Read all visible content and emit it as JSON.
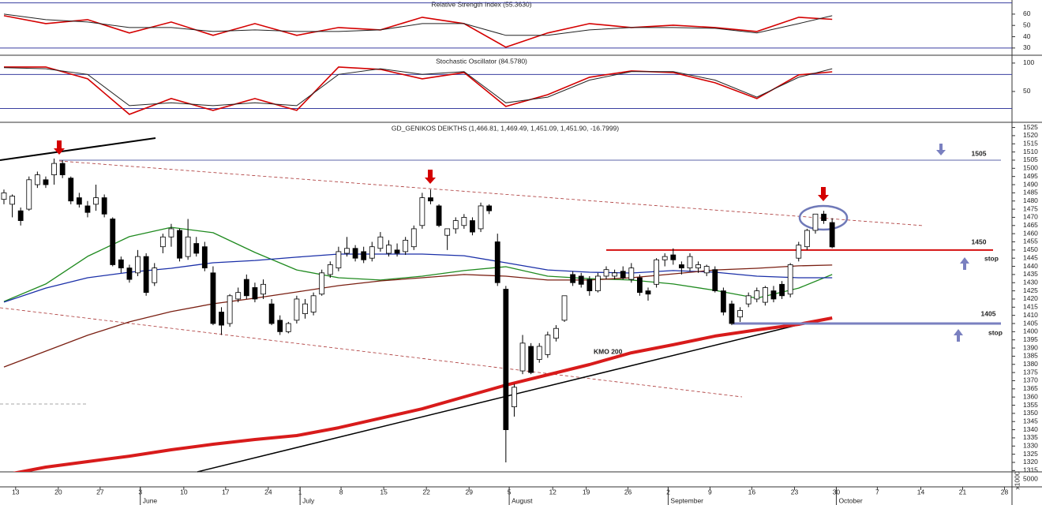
{
  "chart_data": [
    {
      "type": "line",
      "title": "Relative Strength Index (55.3630)",
      "ylim": [
        25,
        72.5
      ],
      "yticks": [
        60,
        50,
        40,
        30
      ],
      "ref_lines": [
        70,
        30
      ],
      "xlim": [
        -0.47,
        120.5
      ],
      "line_x": [
        0,
        5,
        10,
        15,
        20,
        25,
        30,
        35,
        40,
        45,
        50,
        55,
        60,
        65,
        70,
        75,
        80,
        85,
        90,
        95,
        99
      ],
      "series": [
        {
          "color": "#d40000",
          "width": 1.6,
          "values": [
            58.6,
            51.6,
            55.1,
            43.3,
            53,
            41.2,
            51.6,
            41.2,
            48.1,
            46,
            57.2,
            51.6,
            30.7,
            43.3,
            51.6,
            48.1,
            50.2,
            48.1,
            44.6,
            57.2,
            55.363
          ]
        },
        {
          "color": "#222222",
          "width": 1,
          "values": [
            60,
            55.1,
            53,
            48.1,
            48.1,
            44.6,
            46,
            44.6,
            44.6,
            46,
            51.6,
            51.6,
            41.2,
            41.2,
            46,
            48.1,
            48.1,
            47.4,
            43.3,
            51.6,
            58.6
          ]
        }
      ]
    },
    {
      "type": "line",
      "title": "Stochastic Oscillator (84.5780)",
      "ylim": [
        -1.5,
        111
      ],
      "yticks": [
        100,
        50
      ],
      "ref_lines": [
        80,
        20
      ],
      "xlim": [
        -0.47,
        120.5
      ],
      "line_x": [
        0,
        5,
        10,
        15,
        20,
        25,
        30,
        35,
        40,
        45,
        50,
        55,
        60,
        65,
        70,
        75,
        80,
        85,
        90,
        95,
        99
      ],
      "series": [
        {
          "color": "#d40000",
          "width": 1.6,
          "values": [
            93.1,
            93.1,
            72.2,
            9.7,
            37.5,
            16.7,
            37.5,
            16.7,
            93.1,
            88.9,
            72.2,
            83.3,
            23.6,
            44.4,
            75,
            86.1,
            83.3,
            65.3,
            37.5,
            79.2,
            84.578
          ]
        },
        {
          "color": "#222222",
          "width": 1,
          "values": [
            92,
            90,
            80,
            25,
            30,
            25,
            30,
            25,
            80,
            90,
            80,
            85,
            30,
            40,
            70,
            85,
            85,
            70,
            40,
            75,
            90
          ]
        }
      ]
    },
    {
      "type": "candlestick",
      "title": "GD_GENIKOS DEIKTHS (1,466.81, 1,469.49, 1,451.09, 1,451.90, -16.7999)",
      "ylim": [
        1314.2,
        1527.2
      ],
      "xlim": [
        -0.47,
        120.5
      ],
      "yticks": [
        1315,
        1320,
        1325,
        1330,
        1335,
        1340,
        1345,
        1350,
        1355,
        1360,
        1365,
        1370,
        1375,
        1380,
        1385,
        1390,
        1395,
        1400,
        1405,
        1410,
        1415,
        1420,
        1425,
        1430,
        1435,
        1440,
        1445,
        1450,
        1455,
        1460,
        1465,
        1470,
        1475,
        1480,
        1485,
        1490,
        1495,
        1500,
        1505,
        1510,
        1515,
        1520,
        1525
      ],
      "xticks": [
        {
          "value": 1.4,
          "label": "13"
        },
        {
          "value": 6.5,
          "label": "20"
        },
        {
          "value": 11.5,
          "label": "27"
        },
        {
          "value": 16.3,
          "label": "3"
        },
        {
          "value": 21.5,
          "label": "10"
        },
        {
          "value": 26.5,
          "label": "17"
        },
        {
          "value": 31.6,
          "label": "24"
        },
        {
          "value": 35.4,
          "label": "1"
        },
        {
          "value": 40.3,
          "label": "8"
        },
        {
          "value": 45.4,
          "label": "15"
        },
        {
          "value": 50.5,
          "label": "22"
        },
        {
          "value": 55.6,
          "label": "29"
        },
        {
          "value": 60.4,
          "label": "5"
        },
        {
          "value": 65.6,
          "label": "12"
        },
        {
          "value": 69.6,
          "label": "19"
        },
        {
          "value": 74.6,
          "label": "26"
        },
        {
          "value": 79.4,
          "label": "2"
        },
        {
          "value": 84.4,
          "label": "9"
        },
        {
          "value": 89.4,
          "label": "16"
        },
        {
          "value": 94.5,
          "label": "23"
        },
        {
          "value": 99.5,
          "label": "30"
        },
        {
          "value": 104.4,
          "label": "7"
        },
        {
          "value": 109.6,
          "label": "14"
        },
        {
          "value": 114.6,
          "label": "21"
        },
        {
          "value": 119.6,
          "label": "28"
        }
      ],
      "months": [
        {
          "value": 16.3,
          "label": "June"
        },
        {
          "value": 35.4,
          "label": "July"
        },
        {
          "value": 60.4,
          "label": "August"
        },
        {
          "value": 79.4,
          "label": "September"
        },
        {
          "value": 99.5,
          "label": "October"
        }
      ],
      "ohlc": [
        [
          1481,
          1487,
          1478,
          1485
        ],
        [
          1478,
          1484,
          1470,
          1483
        ],
        [
          1474,
          1476,
          1465,
          1468
        ],
        [
          1475,
          1495,
          1474,
          1493
        ],
        [
          1490,
          1498,
          1488,
          1496
        ],
        [
          1493,
          1495,
          1488,
          1490
        ],
        [
          1496,
          1506,
          1490,
          1503
        ],
        [
          1503,
          1505,
          1494,
          1496
        ],
        [
          1494,
          1495,
          1478,
          1480
        ],
        [
          1482,
          1485,
          1476,
          1478
        ],
        [
          1477,
          1480,
          1470,
          1473
        ],
        [
          1478,
          1490,
          1474,
          1482
        ],
        [
          1482,
          1484,
          1470,
          1472
        ],
        [
          1469,
          1470,
          1440,
          1441
        ],
        [
          1444,
          1446,
          1436,
          1439
        ],
        [
          1439,
          1441,
          1430,
          1432
        ],
        [
          1436,
          1450,
          1434,
          1446
        ],
        [
          1446,
          1448,
          1422,
          1424
        ],
        [
          1430,
          1442,
          1428,
          1439
        ],
        [
          1452,
          1460,
          1448,
          1458
        ],
        [
          1458,
          1466,
          1452,
          1463
        ],
        [
          1462,
          1463,
          1443,
          1445
        ],
        [
          1446,
          1469,
          1444,
          1458
        ],
        [
          1454,
          1458,
          1446,
          1448
        ],
        [
          1452,
          1455,
          1437,
          1439
        ],
        [
          1436,
          1440,
          1404,
          1405
        ],
        [
          1412,
          1415,
          1398,
          1404
        ],
        [
          1405,
          1423,
          1403,
          1422
        ],
        [
          1420,
          1427,
          1418,
          1424
        ],
        [
          1432,
          1435,
          1420,
          1422
        ],
        [
          1427,
          1430,
          1418,
          1420
        ],
        [
          1423,
          1432,
          1420,
          1429
        ],
        [
          1417,
          1420,
          1404,
          1405
        ],
        [
          1407,
          1410,
          1398,
          1400
        ],
        [
          1400,
          1406,
          1399,
          1405
        ],
        [
          1407,
          1422,
          1405,
          1420
        ],
        [
          1411,
          1420,
          1408,
          1417
        ],
        [
          1412,
          1424,
          1410,
          1422
        ],
        [
          1423,
          1438,
          1422,
          1436
        ],
        [
          1435,
          1443,
          1433,
          1441
        ],
        [
          1439,
          1452,
          1437,
          1449
        ],
        [
          1448,
          1458,
          1446,
          1451
        ],
        [
          1451,
          1453,
          1443,
          1445
        ],
        [
          1449,
          1452,
          1442,
          1444
        ],
        [
          1445,
          1455,
          1443,
          1452
        ],
        [
          1451,
          1461,
          1449,
          1458
        ],
        [
          1448,
          1456,
          1446,
          1453
        ],
        [
          1450,
          1454,
          1446,
          1448
        ],
        [
          1449,
          1458,
          1447,
          1456
        ],
        [
          1452,
          1465,
          1450,
          1463
        ],
        [
          1465,
          1485,
          1463,
          1482
        ],
        [
          1482,
          1487,
          1478,
          1480
        ],
        [
          1477,
          1478,
          1464,
          1465
        ],
        [
          1459,
          1463,
          1450,
          1463
        ],
        [
          1463,
          1470,
          1460,
          1468
        ],
        [
          1465,
          1472,
          1463,
          1470
        ],
        [
          1468,
          1470,
          1459,
          1461
        ],
        [
          1463,
          1479,
          1461,
          1477
        ],
        [
          1477,
          1478,
          1472,
          1474
        ],
        [
          1455,
          1460,
          1428,
          1430
        ],
        [
          1426,
          1428,
          1320,
          1340
        ],
        [
          1354,
          1368,
          1348,
          1366
        ],
        [
          1376,
          1398,
          1374,
          1393
        ],
        [
          1391,
          1393,
          1374,
          1375
        ],
        [
          1383,
          1393,
          1381,
          1391
        ],
        [
          1386,
          1400,
          1384,
          1398
        ],
        [
          1396,
          1404,
          1394,
          1402
        ],
        [
          1407,
          1422,
          1406,
          1422
        ],
        [
          1435,
          1437,
          1428,
          1430
        ],
        [
          1434,
          1436,
          1427,
          1429
        ],
        [
          1432,
          1434,
          1422,
          1425
        ],
        [
          1425,
          1436,
          1424,
          1434
        ],
        [
          1434,
          1440,
          1432,
          1438
        ],
        [
          1434,
          1438,
          1432,
          1436
        ],
        [
          1437,
          1440,
          1432,
          1433
        ],
        [
          1432,
          1442,
          1430,
          1439
        ],
        [
          1433,
          1435,
          1422,
          1424
        ],
        [
          1425,
          1427,
          1419,
          1423
        ],
        [
          1429,
          1445,
          1427,
          1444
        ],
        [
          1444,
          1448,
          1440,
          1446
        ],
        [
          1447,
          1451,
          1441,
          1444
        ],
        [
          1441,
          1443,
          1435,
          1439
        ],
        [
          1439,
          1448,
          1437,
          1446
        ],
        [
          1439,
          1443,
          1436,
          1441
        ],
        [
          1436,
          1441,
          1434,
          1440
        ],
        [
          1438,
          1440,
          1424,
          1425
        ],
        [
          1425,
          1427,
          1410,
          1412
        ],
        [
          1417,
          1419,
          1404,
          1405
        ],
        [
          1409,
          1415,
          1406,
          1413
        ],
        [
          1417,
          1424,
          1415,
          1422
        ],
        [
          1420,
          1427,
          1418,
          1425
        ],
        [
          1418,
          1428,
          1416,
          1427
        ],
        [
          1425,
          1428,
          1418,
          1420
        ],
        [
          1429,
          1431,
          1420,
          1422
        ],
        [
          1423,
          1442,
          1421,
          1441
        ],
        [
          1445,
          1455,
          1443,
          1453
        ],
        [
          1452,
          1463,
          1450,
          1462
        ],
        [
          1462,
          1472,
          1460,
          1472
        ],
        [
          1472,
          1474,
          1466,
          1468
        ],
        [
          1466.81,
          1469.49,
          1451.09,
          1451.9
        ]
      ],
      "line_x": [
        0,
        5,
        10,
        15,
        20,
        25,
        30,
        35,
        40,
        45,
        50,
        55,
        60,
        65,
        70,
        75,
        80,
        85,
        90,
        95,
        99
      ],
      "lines": [
        {
          "color": "#1f8a1f",
          "width": 1.3,
          "values": [
            1418.5,
            1429.2,
            1446.1,
            1458.2,
            1463.9,
            1460.6,
            1448.5,
            1437.8,
            1433,
            1431.6,
            1434,
            1437.4,
            1439.8,
            1434,
            1432.5,
            1431.6,
            1429.2,
            1425.3,
            1420.5,
            1426.7,
            1435
          ]
        },
        {
          "color": "#1a2fa8",
          "width": 1.3,
          "values": [
            1418.1,
            1426.7,
            1433,
            1436.4,
            1438.8,
            1442.2,
            1443.6,
            1445.6,
            1447.5,
            1447.5,
            1447.5,
            1446.5,
            1442.2,
            1437.8,
            1436.4,
            1435.9,
            1437.4,
            1436.4,
            1434,
            1433,
            1433
          ]
        },
        {
          "color": "#7a1f12",
          "width": 1.3,
          "values": [
            1378.4,
            1388.1,
            1397.8,
            1406,
            1412.3,
            1417.1,
            1420.5,
            1424.3,
            1428.2,
            1431.1,
            1433,
            1435,
            1434,
            1431.6,
            1431.6,
            1433,
            1435.4,
            1437.8,
            1438.8,
            1440.3,
            1440.8
          ]
        },
        {
          "color": "#d81b1b",
          "width": 4,
          "values": [
            1312.2,
            1317.1,
            1320.5,
            1323.8,
            1327.7,
            1331.1,
            1334,
            1336.4,
            1341.2,
            1347,
            1352.8,
            1360.1,
            1367.3,
            1373.6,
            1379.9,
            1387.1,
            1392,
            1397.3,
            1401.1,
            1404.5,
            1408.4
          ]
        }
      ],
      "levels": [
        1505,
        1450,
        1405
      ],
      "level_colors": [
        "#5e66a8",
        "#d41010",
        "#7a80c0"
      ],
      "annotations": [
        "KMO 200",
        "stop",
        "stop"
      ],
      "volume_tick": 5000,
      "volume_unit": "x1000"
    }
  ]
}
